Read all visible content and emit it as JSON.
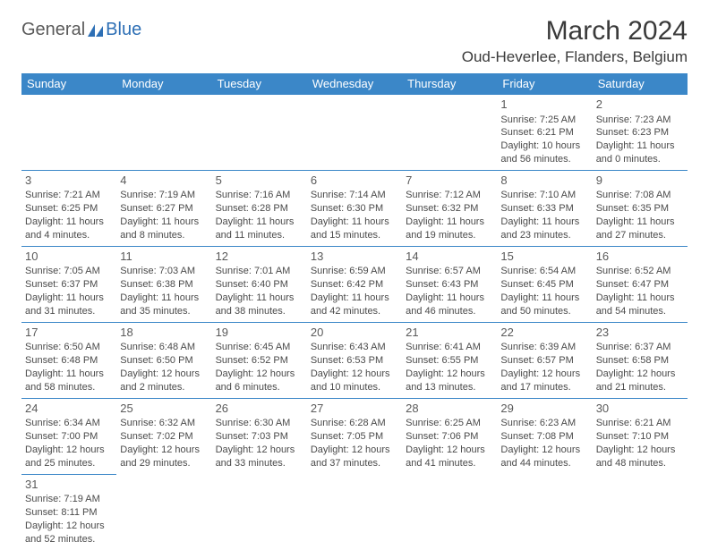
{
  "logo": {
    "part1": "General",
    "part2": "Blue"
  },
  "title": "March 2024",
  "location": "Oud-Heverlee, Flanders, Belgium",
  "colors": {
    "header_bg": "#3b87c8",
    "header_text": "#ffffff",
    "border": "#3b87c8",
    "text": "#4a4a4a",
    "logo_gray": "#5a5a5a",
    "logo_blue": "#2d6fb5"
  },
  "day_headers": [
    "Sunday",
    "Monday",
    "Tuesday",
    "Wednesday",
    "Thursday",
    "Friday",
    "Saturday"
  ],
  "weeks": [
    [
      null,
      null,
      null,
      null,
      null,
      {
        "n": "1",
        "sr": "Sunrise: 7:25 AM",
        "ss": "Sunset: 6:21 PM",
        "d1": "Daylight: 10 hours",
        "d2": "and 56 minutes."
      },
      {
        "n": "2",
        "sr": "Sunrise: 7:23 AM",
        "ss": "Sunset: 6:23 PM",
        "d1": "Daylight: 11 hours",
        "d2": "and 0 minutes."
      }
    ],
    [
      {
        "n": "3",
        "sr": "Sunrise: 7:21 AM",
        "ss": "Sunset: 6:25 PM",
        "d1": "Daylight: 11 hours",
        "d2": "and 4 minutes."
      },
      {
        "n": "4",
        "sr": "Sunrise: 7:19 AM",
        "ss": "Sunset: 6:27 PM",
        "d1": "Daylight: 11 hours",
        "d2": "and 8 minutes."
      },
      {
        "n": "5",
        "sr": "Sunrise: 7:16 AM",
        "ss": "Sunset: 6:28 PM",
        "d1": "Daylight: 11 hours",
        "d2": "and 11 minutes."
      },
      {
        "n": "6",
        "sr": "Sunrise: 7:14 AM",
        "ss": "Sunset: 6:30 PM",
        "d1": "Daylight: 11 hours",
        "d2": "and 15 minutes."
      },
      {
        "n": "7",
        "sr": "Sunrise: 7:12 AM",
        "ss": "Sunset: 6:32 PM",
        "d1": "Daylight: 11 hours",
        "d2": "and 19 minutes."
      },
      {
        "n": "8",
        "sr": "Sunrise: 7:10 AM",
        "ss": "Sunset: 6:33 PM",
        "d1": "Daylight: 11 hours",
        "d2": "and 23 minutes."
      },
      {
        "n": "9",
        "sr": "Sunrise: 7:08 AM",
        "ss": "Sunset: 6:35 PM",
        "d1": "Daylight: 11 hours",
        "d2": "and 27 minutes."
      }
    ],
    [
      {
        "n": "10",
        "sr": "Sunrise: 7:05 AM",
        "ss": "Sunset: 6:37 PM",
        "d1": "Daylight: 11 hours",
        "d2": "and 31 minutes."
      },
      {
        "n": "11",
        "sr": "Sunrise: 7:03 AM",
        "ss": "Sunset: 6:38 PM",
        "d1": "Daylight: 11 hours",
        "d2": "and 35 minutes."
      },
      {
        "n": "12",
        "sr": "Sunrise: 7:01 AM",
        "ss": "Sunset: 6:40 PM",
        "d1": "Daylight: 11 hours",
        "d2": "and 38 minutes."
      },
      {
        "n": "13",
        "sr": "Sunrise: 6:59 AM",
        "ss": "Sunset: 6:42 PM",
        "d1": "Daylight: 11 hours",
        "d2": "and 42 minutes."
      },
      {
        "n": "14",
        "sr": "Sunrise: 6:57 AM",
        "ss": "Sunset: 6:43 PM",
        "d1": "Daylight: 11 hours",
        "d2": "and 46 minutes."
      },
      {
        "n": "15",
        "sr": "Sunrise: 6:54 AM",
        "ss": "Sunset: 6:45 PM",
        "d1": "Daylight: 11 hours",
        "d2": "and 50 minutes."
      },
      {
        "n": "16",
        "sr": "Sunrise: 6:52 AM",
        "ss": "Sunset: 6:47 PM",
        "d1": "Daylight: 11 hours",
        "d2": "and 54 minutes."
      }
    ],
    [
      {
        "n": "17",
        "sr": "Sunrise: 6:50 AM",
        "ss": "Sunset: 6:48 PM",
        "d1": "Daylight: 11 hours",
        "d2": "and 58 minutes."
      },
      {
        "n": "18",
        "sr": "Sunrise: 6:48 AM",
        "ss": "Sunset: 6:50 PM",
        "d1": "Daylight: 12 hours",
        "d2": "and 2 minutes."
      },
      {
        "n": "19",
        "sr": "Sunrise: 6:45 AM",
        "ss": "Sunset: 6:52 PM",
        "d1": "Daylight: 12 hours",
        "d2": "and 6 minutes."
      },
      {
        "n": "20",
        "sr": "Sunrise: 6:43 AM",
        "ss": "Sunset: 6:53 PM",
        "d1": "Daylight: 12 hours",
        "d2": "and 10 minutes."
      },
      {
        "n": "21",
        "sr": "Sunrise: 6:41 AM",
        "ss": "Sunset: 6:55 PM",
        "d1": "Daylight: 12 hours",
        "d2": "and 13 minutes."
      },
      {
        "n": "22",
        "sr": "Sunrise: 6:39 AM",
        "ss": "Sunset: 6:57 PM",
        "d1": "Daylight: 12 hours",
        "d2": "and 17 minutes."
      },
      {
        "n": "23",
        "sr": "Sunrise: 6:37 AM",
        "ss": "Sunset: 6:58 PM",
        "d1": "Daylight: 12 hours",
        "d2": "and 21 minutes."
      }
    ],
    [
      {
        "n": "24",
        "sr": "Sunrise: 6:34 AM",
        "ss": "Sunset: 7:00 PM",
        "d1": "Daylight: 12 hours",
        "d2": "and 25 minutes."
      },
      {
        "n": "25",
        "sr": "Sunrise: 6:32 AM",
        "ss": "Sunset: 7:02 PM",
        "d1": "Daylight: 12 hours",
        "d2": "and 29 minutes."
      },
      {
        "n": "26",
        "sr": "Sunrise: 6:30 AM",
        "ss": "Sunset: 7:03 PM",
        "d1": "Daylight: 12 hours",
        "d2": "and 33 minutes."
      },
      {
        "n": "27",
        "sr": "Sunrise: 6:28 AM",
        "ss": "Sunset: 7:05 PM",
        "d1": "Daylight: 12 hours",
        "d2": "and 37 minutes."
      },
      {
        "n": "28",
        "sr": "Sunrise: 6:25 AM",
        "ss": "Sunset: 7:06 PM",
        "d1": "Daylight: 12 hours",
        "d2": "and 41 minutes."
      },
      {
        "n": "29",
        "sr": "Sunrise: 6:23 AM",
        "ss": "Sunset: 7:08 PM",
        "d1": "Daylight: 12 hours",
        "d2": "and 44 minutes."
      },
      {
        "n": "30",
        "sr": "Sunrise: 6:21 AM",
        "ss": "Sunset: 7:10 PM",
        "d1": "Daylight: 12 hours",
        "d2": "and 48 minutes."
      }
    ],
    [
      {
        "n": "31",
        "sr": "Sunrise: 7:19 AM",
        "ss": "Sunset: 8:11 PM",
        "d1": "Daylight: 12 hours",
        "d2": "and 52 minutes."
      },
      null,
      null,
      null,
      null,
      null,
      null
    ]
  ]
}
